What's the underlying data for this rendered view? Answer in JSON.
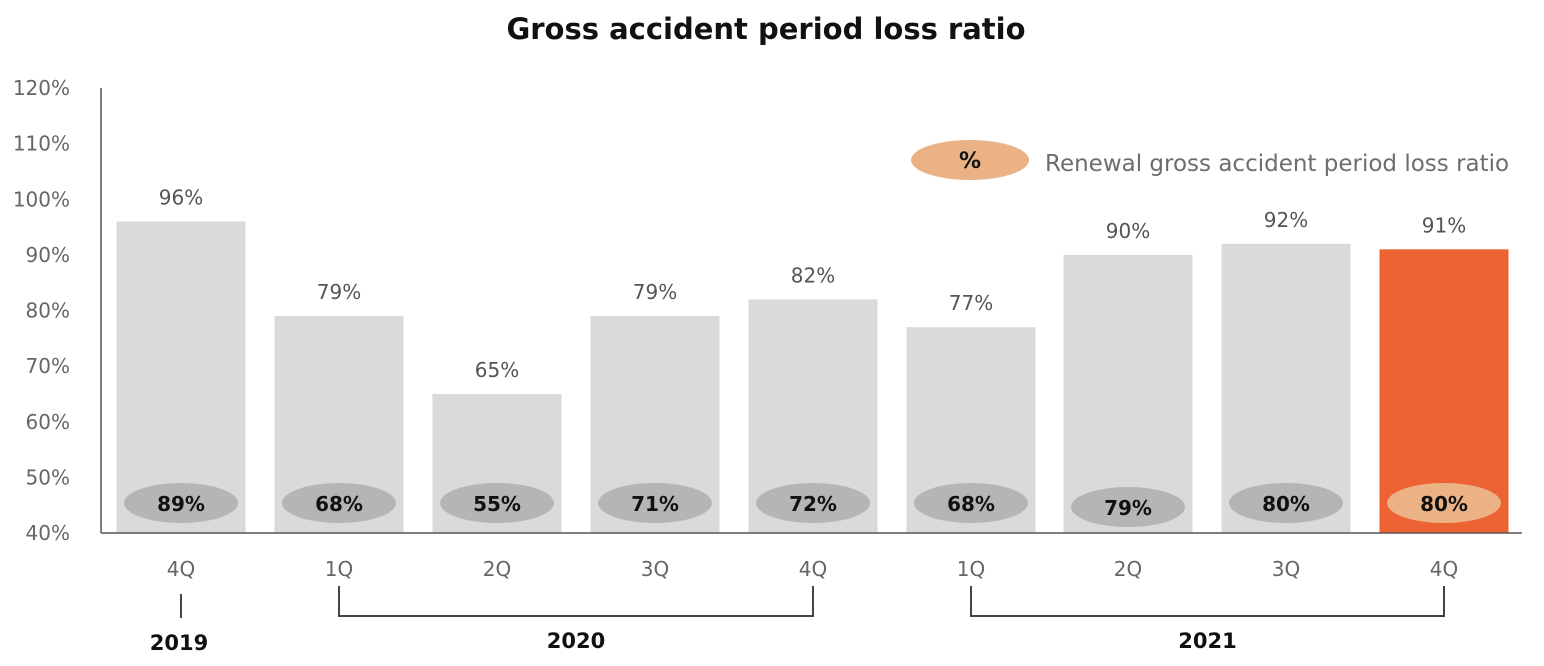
{
  "chart_data": {
    "type": "bar",
    "title": "Gross accident period loss ratio",
    "categories": [
      "4Q",
      "1Q",
      "2Q",
      "3Q",
      "4Q",
      "1Q",
      "2Q",
      "3Q",
      "4Q"
    ],
    "groups": [
      {
        "label": "2019",
        "from": 0,
        "to": 0
      },
      {
        "label": "2020",
        "from": 1,
        "to": 4
      },
      {
        "label": "2021",
        "from": 5,
        "to": 8
      }
    ],
    "series": [
      {
        "values": [
          96,
          79,
          65,
          79,
          82,
          77,
          90,
          92,
          91
        ],
        "labels": [
          "96%",
          "79%",
          "65%",
          "79%",
          "82%",
          "77%",
          "90%",
          "92%",
          "91%"
        ]
      },
      {
        "name": "Renewal gross accident period loss ratio",
        "values": [
          89,
          68,
          55,
          71,
          72,
          68,
          79,
          80,
          80
        ],
        "labels": [
          "89%",
          "68%",
          "55%",
          "71%",
          "72%",
          "68%",
          "79%",
          "80%",
          "80%"
        ]
      }
    ],
    "yticks": [
      "40%",
      "50%",
      "60%",
      "70%",
      "80%",
      "90%",
      "100%",
      "110%",
      "120%"
    ],
    "ylim": [
      40,
      120
    ],
    "legend": {
      "symbol": "%",
      "label": "Renewal gross accident period loss ratio",
      "position": "top-right"
    },
    "highlight_index": 8,
    "colors": {
      "bar": "#dadada",
      "bar_highlight": "#ec6233",
      "ellipse": "#b5b5b5",
      "ellipse_highlight": "#ebb385",
      "axis": "#555555"
    },
    "grid": false
  }
}
